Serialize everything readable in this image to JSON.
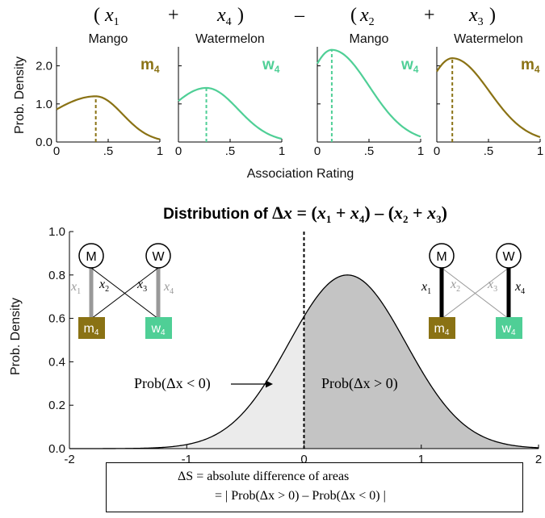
{
  "colors": {
    "mango": "#8a7214",
    "watermelon": "#4fcf96",
    "area_left": "#ebebeb",
    "area_right": "#c4c4c4",
    "edge_gray": "#999999"
  },
  "top_formula": {
    "x1": "x",
    "x1_sub": "1",
    "x4": "x",
    "x4_sub": "4",
    "x2": "x",
    "x2_sub": "2",
    "x3": "x",
    "x3_sub": "3",
    "open": "(",
    "close": ")",
    "plus": "+",
    "minus": "–"
  },
  "small_panels": [
    {
      "title": "Mango",
      "badge": "m",
      "badge_sub": "4",
      "color": "mango",
      "mode": 0.38,
      "peak": 1.2
    },
    {
      "title": "Watermelon",
      "badge": "w",
      "badge_sub": "4",
      "color": "watermelon",
      "mode": 0.27,
      "peak": 1.42
    },
    {
      "title": "Mango",
      "badge": "w",
      "badge_sub": "4",
      "color": "watermelon",
      "mode": 0.14,
      "peak": 2.42
    },
    {
      "title": "Watermelon",
      "badge": "m",
      "badge_sub": "4",
      "color": "mango",
      "mode": 0.15,
      "peak": 2.2
    }
  ],
  "small_axes": {
    "ylabel": "Prob. Density",
    "xlabel": "Association Rating",
    "yticks": [
      "0.0",
      "1.0",
      "2.0"
    ],
    "xticks_first": [
      "0",
      ".5",
      "1"
    ],
    "xticks_other": [
      "0",
      ".5",
      "1"
    ]
  },
  "main_chart": {
    "title_prefix": "Distribution of ",
    "title_delta": "Δ",
    "title_x": "x",
    "title_eq": " = (",
    "title_plus": " + ",
    "title_close_minus": ") – (",
    "title_close": ")",
    "ylabel": "Prob. Density",
    "yticks": [
      "0.0",
      "0.2",
      "0.4",
      "0.6",
      "0.8",
      "1.0"
    ],
    "xticks": [
      "-2",
      "-1",
      "0",
      "1",
      "2"
    ],
    "label_left": "Prob(Δx < 0)",
    "label_right": "Prob(Δx > 0)"
  },
  "chart_data": [
    {
      "type": "line",
      "title": "Mango",
      "badge": "m4",
      "xlim": [
        0,
        1
      ],
      "ylim": [
        0,
        2.5
      ],
      "mode": 0.38,
      "peak": 1.2,
      "x": [
        0,
        0.25,
        0.38,
        0.5,
        0.75,
        1
      ],
      "y": [
        0.62,
        1.08,
        1.2,
        1.12,
        0.72,
        0.2
      ]
    },
    {
      "type": "line",
      "title": "Watermelon",
      "badge": "w4",
      "xlim": [
        0,
        1
      ],
      "ylim": [
        0,
        2.5
      ],
      "mode": 0.27,
      "peak": 1.42,
      "x": [
        0,
        0.27,
        0.5,
        0.75,
        1
      ],
      "y": [
        0.72,
        1.42,
        1.15,
        0.45,
        0.08
      ]
    },
    {
      "type": "line",
      "title": "Mango",
      "badge": "w4",
      "xlim": [
        0,
        1
      ],
      "ylim": [
        0,
        2.5
      ],
      "mode": 0.14,
      "peak": 2.42,
      "x": [
        0,
        0.14,
        0.25,
        0.5,
        0.75,
        1
      ],
      "y": [
        1.9,
        2.42,
        2.1,
        0.6,
        0.05,
        0.0
      ]
    },
    {
      "type": "line",
      "title": "Watermelon",
      "badge": "m4",
      "xlim": [
        0,
        1
      ],
      "ylim": [
        0,
        2.5
      ],
      "mode": 0.15,
      "peak": 2.2,
      "x": [
        0,
        0.15,
        0.25,
        0.5,
        0.75,
        1
      ],
      "y": [
        1.55,
        2.2,
        1.95,
        0.55,
        0.03,
        0.0
      ]
    },
    {
      "type": "area",
      "title": "Distribution of Δx = (x1 + x4) – (x2 + x3)",
      "xlim": [
        -2,
        2
      ],
      "ylim": [
        0,
        1
      ],
      "xlabel": "",
      "ylabel": "Prob. Density",
      "mean": 0.37,
      "sd": 0.5,
      "peak": 0.8,
      "split_at": 0,
      "series": [
        {
          "name": "Prob(Δx < 0)",
          "x_range": [
            -2,
            0
          ]
        },
        {
          "name": "Prob(Δx > 0)",
          "x_range": [
            0,
            2
          ]
        }
      ]
    }
  ],
  "diagram_left": {
    "node_top_left": "M",
    "node_top_right": "W",
    "node_bot_left": "m",
    "node_bot_left_sub": "4",
    "node_bot_right": "w",
    "node_bot_right_sub": "4",
    "e1": "x",
    "e1_sub": "1",
    "e2": "x",
    "e2_sub": "2",
    "e3": "x",
    "e3_sub": "3",
    "e4": "x",
    "e4_sub": "4"
  },
  "diagram_right": {
    "node_top_left": "M",
    "node_top_right": "W",
    "node_bot_left": "m",
    "node_bot_left_sub": "4",
    "node_bot_right": "w",
    "node_bot_right_sub": "4",
    "e1": "x",
    "e1_sub": "1",
    "e2": "x",
    "e2_sub": "2",
    "e3": "x",
    "e3_sub": "3",
    "e4": "x",
    "e4_sub": "4"
  },
  "formula": {
    "line1": "ΔS = absolute difference of areas",
    "line2": "= | Prob(Δx > 0) – Prob(Δx < 0) |"
  }
}
